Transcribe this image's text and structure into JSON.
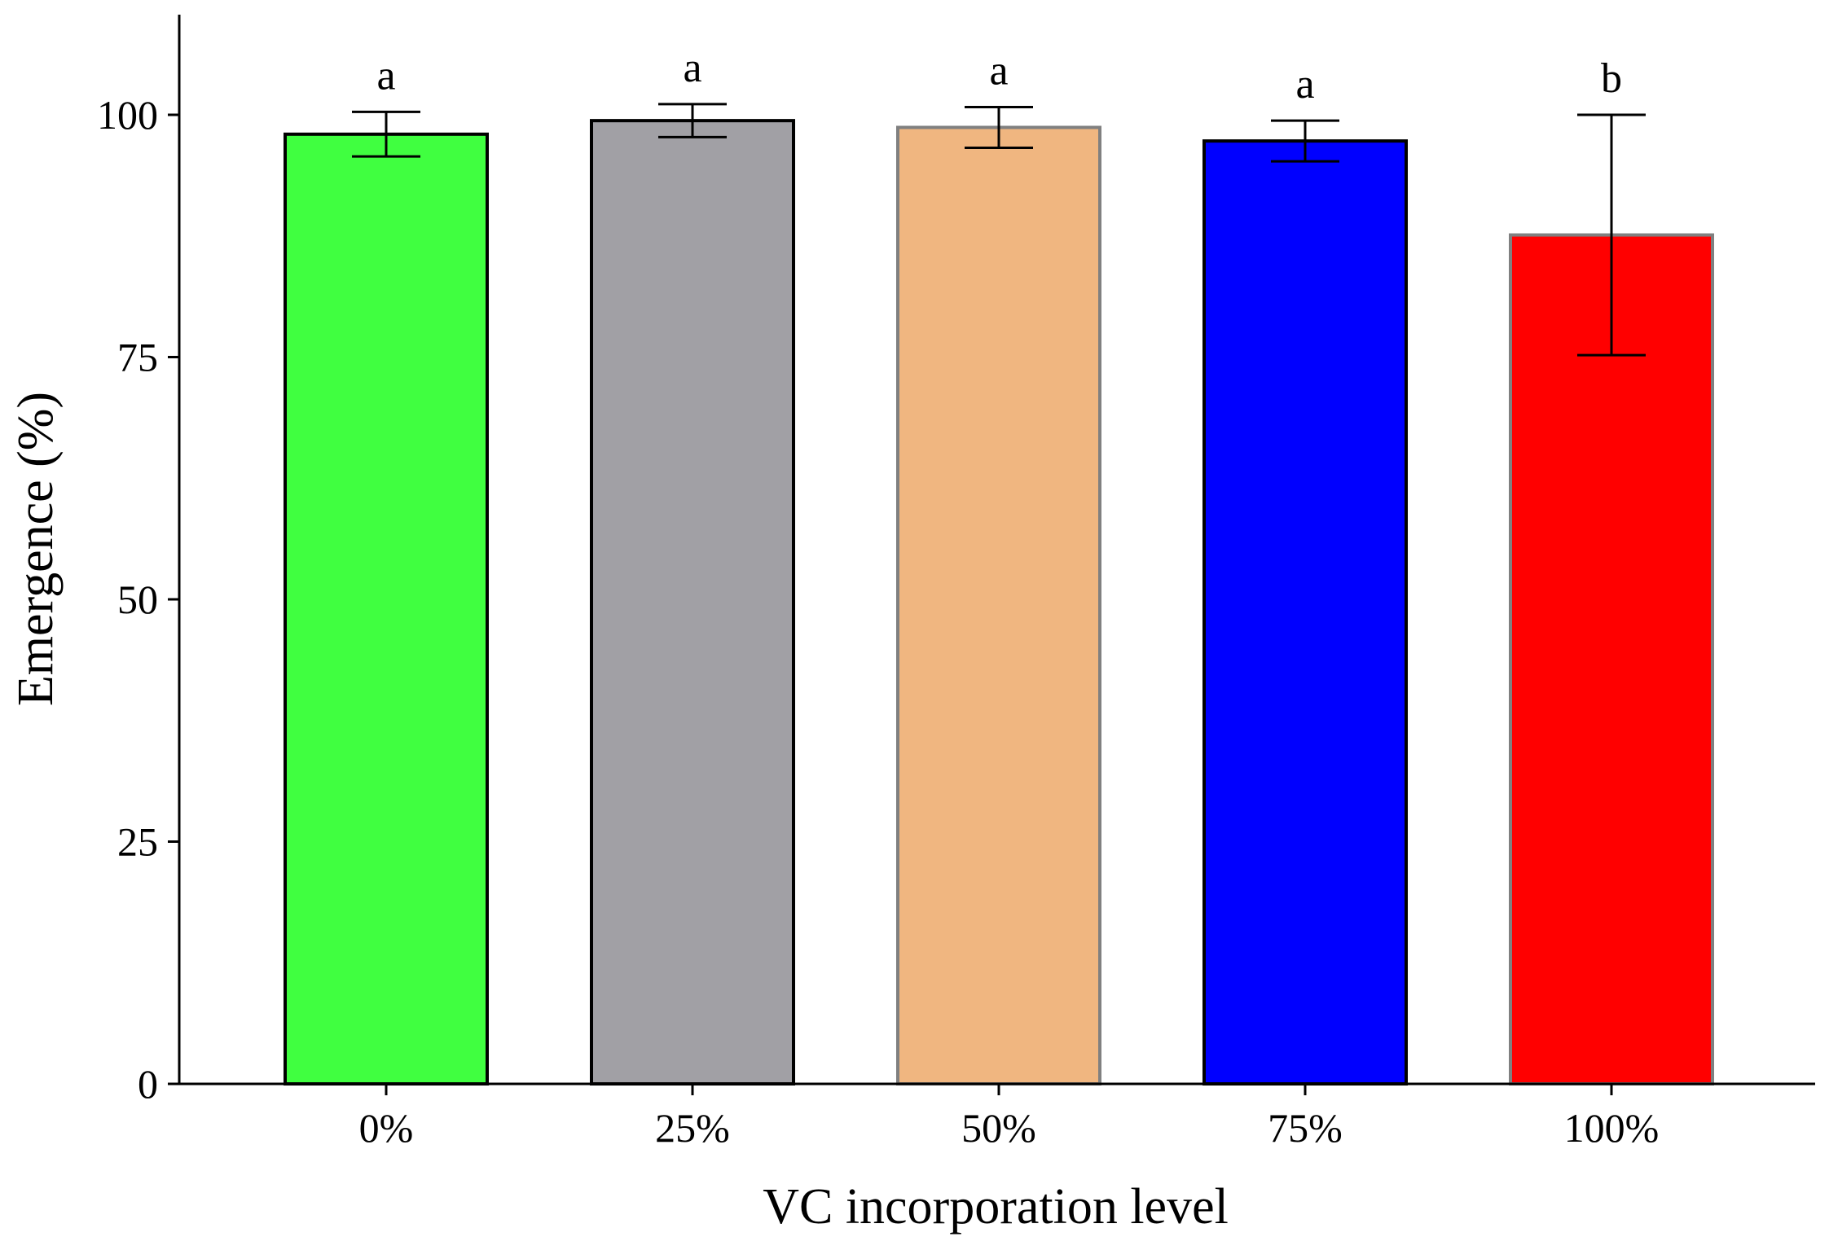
{
  "chart_data": {
    "type": "bar",
    "title": "",
    "xlabel": "VC incorporation level",
    "ylabel": "Emergence (%)",
    "categories": [
      "0%",
      "25%",
      "50%",
      "75%",
      "100%"
    ],
    "values": [
      98.0,
      99.4,
      98.7,
      97.3,
      87.6
    ],
    "errors": [
      2.3,
      1.7,
      2.1,
      2.1,
      12.4
    ],
    "significance": [
      "a",
      "a",
      "a",
      "a",
      "b"
    ],
    "bar_colors": [
      "#40ff40",
      "#a1a0a5",
      "#f0b680",
      "#0000ff",
      "#ff0000"
    ],
    "bar_edge_colors": [
      "#000000",
      "#000000",
      "#808080",
      "#000000",
      "#808080"
    ],
    "yticks": [
      "0",
      "25",
      "50",
      "75",
      "100"
    ],
    "ylim": [
      0,
      110
    ],
    "grid": false,
    "legend": "none"
  }
}
